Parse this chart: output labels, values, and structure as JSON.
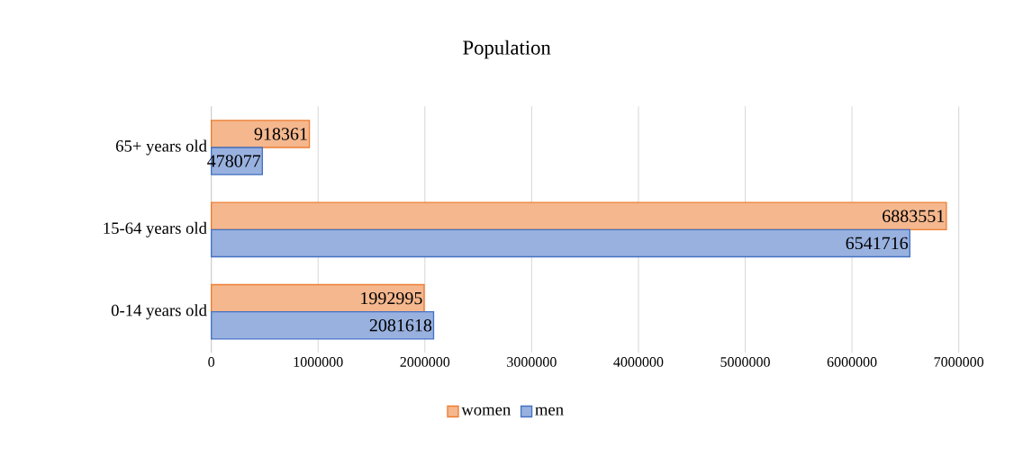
{
  "chart_data": {
    "type": "bar",
    "orientation": "horizontal",
    "title": "Population",
    "categories": [
      "65+ years old",
      "15-64 years old",
      "0-14 years old"
    ],
    "series": [
      {
        "name": "women",
        "color": "#ed7d31",
        "values": [
          918361,
          6883551,
          1992995
        ]
      },
      {
        "name": "men",
        "color": "#4472c4",
        "values": [
          478077,
          6541716,
          2081618
        ]
      }
    ],
    "xlim": [
      0,
      7000000
    ],
    "xticks": [
      0,
      1000000,
      2000000,
      3000000,
      4000000,
      5000000,
      6000000,
      7000000
    ],
    "grid": "x",
    "legend": "bottom",
    "data_labels": true
  }
}
